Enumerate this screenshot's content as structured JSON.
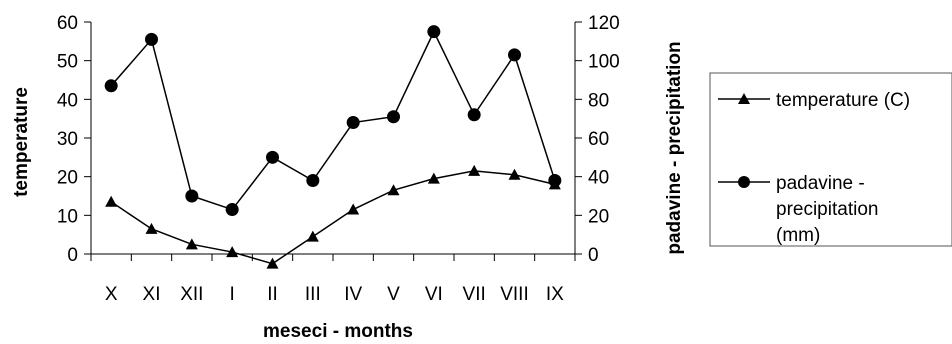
{
  "chart_data": {
    "type": "line",
    "categories": [
      "X",
      "XI",
      "XII",
      "I",
      "II",
      "III",
      "IV",
      "V",
      "VI",
      "VII",
      "VIII",
      "IX"
    ],
    "series": [
      {
        "name": "temperature (C)",
        "axis": "left",
        "marker": "triangle",
        "values": [
          13.5,
          6.5,
          2.5,
          0.5,
          -2.5,
          4.5,
          11.5,
          16.5,
          19.5,
          21.5,
          20.5,
          18
        ]
      },
      {
        "name": "padavine - precipitation (mm)",
        "name_lines": [
          "padavine -",
          "precipitation",
          "(mm)"
        ],
        "axis": "right",
        "marker": "circle",
        "values": [
          87,
          111,
          30,
          23,
          50,
          38,
          68,
          71,
          115,
          72,
          103,
          38
        ]
      }
    ],
    "xlabel": "meseci - months",
    "ylabel": "temperature",
    "y2label": "padavine - precipitation",
    "ylim": [
      0,
      60
    ],
    "y2lim": [
      0,
      120
    ],
    "yticks": [
      0,
      10,
      20,
      30,
      40,
      50,
      60
    ],
    "y2ticks": [
      0,
      20,
      40,
      60,
      80,
      100,
      120
    ],
    "grid": false,
    "legend_position": "right",
    "colors": {
      "line": "#000000",
      "marker": "#000000",
      "background": "#ffffff"
    }
  }
}
